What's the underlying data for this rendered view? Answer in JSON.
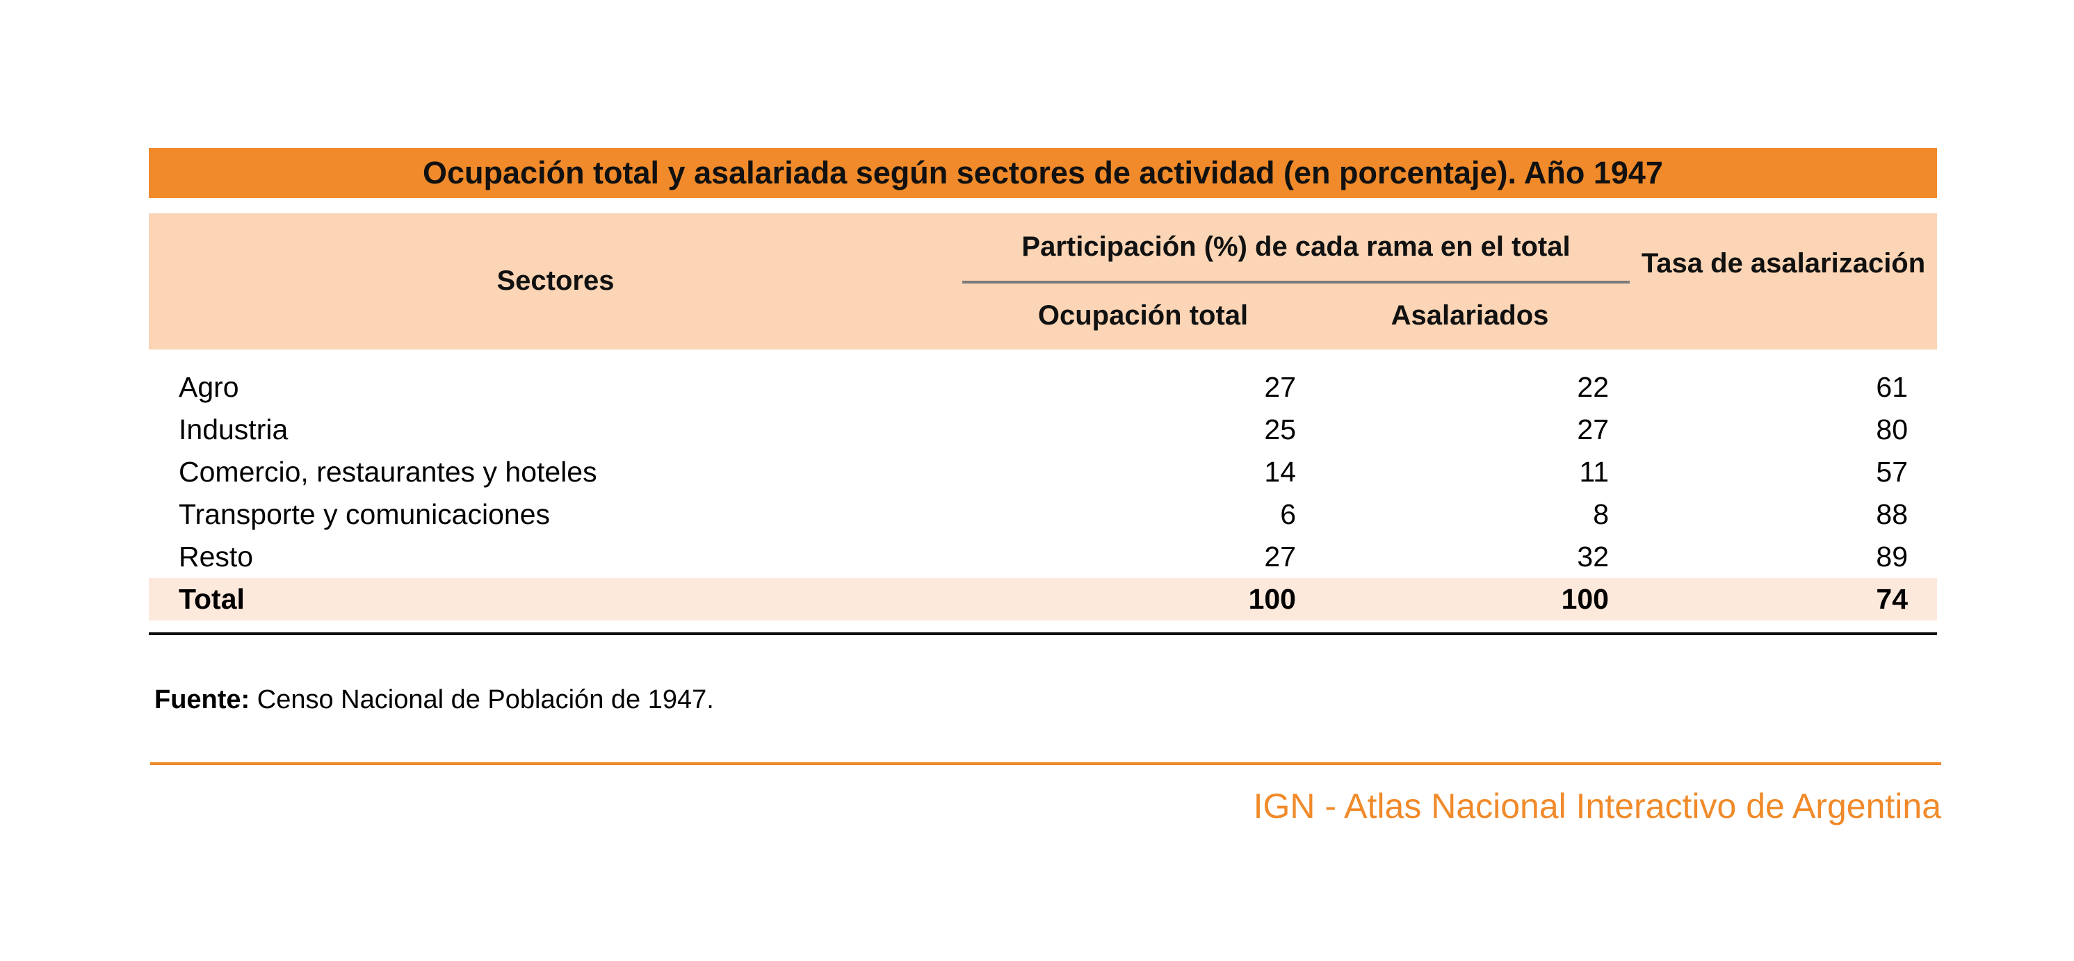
{
  "title": "Ocupación total y asalariada según sectores de actividad (en porcentaje). Año 1947",
  "headers": {
    "sectores": "Sectores",
    "group": "Participación (%) de cada rama en el total",
    "ocupacion_total": "Ocupación total",
    "asalariados": "Asalariados",
    "tasa": "Tasa de asalarización"
  },
  "rows": [
    {
      "sector": "Agro",
      "ocupacion": "27",
      "asalariados": "22",
      "tasa": "61"
    },
    {
      "sector": "Industria",
      "ocupacion": "25",
      "asalariados": "27",
      "tasa": "80"
    },
    {
      "sector": "Comercio, restaurantes y hoteles",
      "ocupacion": "14",
      "asalariados": "11",
      "tasa": "57"
    },
    {
      "sector": "Transporte y comunicaciones",
      "ocupacion": "6",
      "asalariados": "8",
      "tasa": "88"
    },
    {
      "sector": "Resto",
      "ocupacion": "27",
      "asalariados": "32",
      "tasa": "89"
    }
  ],
  "total": {
    "sector": "Total",
    "ocupacion": "100",
    "asalariados": "100",
    "tasa": "74"
  },
  "source": {
    "label": "Fuente:",
    "text": " Censo Nacional de Población de 1947."
  },
  "footer": "IGN - Atlas Nacional Interactivo de Argentina",
  "colors": {
    "accent": "#f08a2a",
    "header_bg": "#fbd5b5",
    "total_bg": "#fde8dc"
  }
}
